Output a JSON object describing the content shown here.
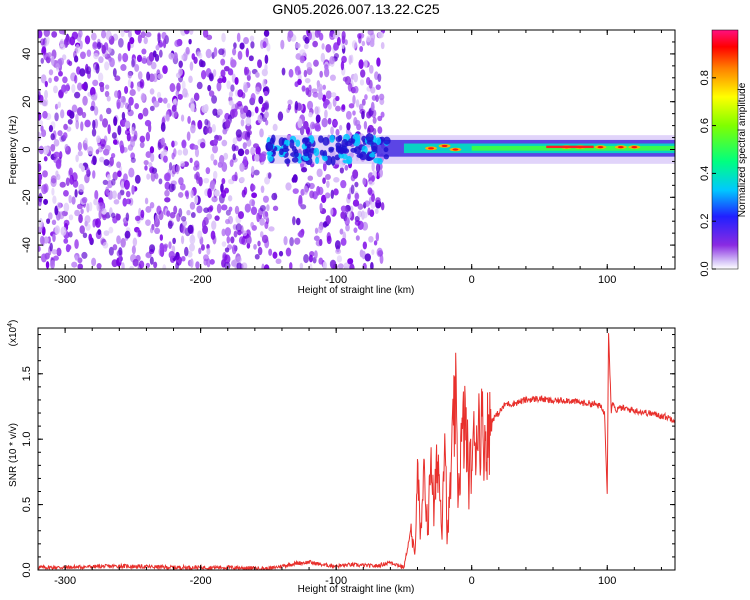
{
  "title": "GN05.2026.007.13.22.C25",
  "chart_data": [
    {
      "type": "heatmap",
      "xlabel": "Height of straight line (km)",
      "ylabel": "Frequency (Hz)",
      "xlim": [
        -320,
        150
      ],
      "ylim": [
        -50,
        50
      ],
      "x_ticks": [
        -300,
        -200,
        -100,
        0,
        100
      ],
      "y_ticks": [
        -40,
        -20,
        0,
        20,
        40
      ],
      "colorbar": {
        "label": "Normalized spectral amplitude",
        "range": [
          0,
          1
        ],
        "ticks": [
          "0.0",
          "0.2",
          "0.4",
          "0.6",
          "0.8"
        ]
      }
    },
    {
      "type": "line",
      "xlabel": "Height of straight line (km)",
      "ylabel": "SNR (10 * v/v)",
      "exponent_label": "(x10",
      "exponent_sup": "4",
      "exponent_close": ")",
      "xlim": [
        -320,
        150
      ],
      "ylim": [
        0,
        1.85
      ],
      "x_ticks": [
        -300,
        -200,
        -100,
        0,
        100
      ],
      "y_ticks": [
        "0.0",
        "0.5",
        "1.0",
        "1.5"
      ],
      "color": "#e8302c",
      "series": [
        {
          "x": [
            -320,
            -300,
            -260,
            -220,
            -180,
            -150,
            -130,
            -120,
            -110,
            -100,
            -90,
            -70,
            -60,
            -50,
            -45,
            -42,
            -40,
            -38,
            -35,
            -32,
            -30,
            -28,
            -25,
            -22,
            -20,
            -18,
            -15,
            -12,
            -10,
            -8,
            -5,
            -2,
            0,
            5,
            10,
            15,
            20,
            25,
            30,
            40,
            50,
            60,
            70,
            80,
            90,
            95,
            98,
            100,
            101,
            102,
            103,
            104,
            106,
            110,
            120,
            130,
            140,
            150
          ],
          "y": [
            0.02,
            0.02,
            0.03,
            0.02,
            0.02,
            0.01,
            0.05,
            0.06,
            0.04,
            0.03,
            0.04,
            0.03,
            0.06,
            0.02,
            0.3,
            0.1,
            0.9,
            0.2,
            0.7,
            0.3,
            1.0,
            0.4,
            0.9,
            0.3,
            1.25,
            0.2,
            0.8,
            1.3,
            0.6,
            0.9,
            1.15,
            0.7,
            0.85,
            1.15,
            1.0,
            1.15,
            1.2,
            1.27,
            1.27,
            1.3,
            1.31,
            1.29,
            1.3,
            1.28,
            1.27,
            1.25,
            1.2,
            0.6,
            1.85,
            1.5,
            1.22,
            1.3,
            1.22,
            1.24,
            1.22,
            1.2,
            1.18,
            1.15
          ]
        }
      ]
    }
  ]
}
